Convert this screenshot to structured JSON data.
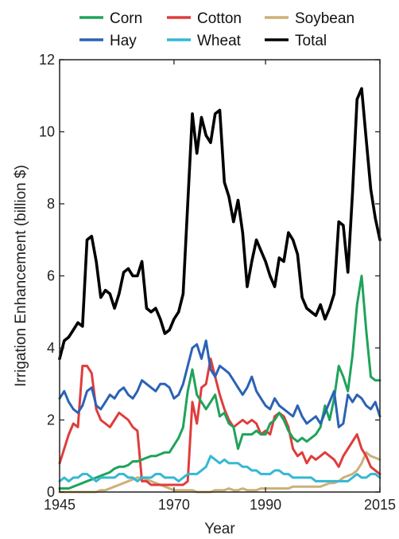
{
  "chart_data": {
    "type": "line",
    "title": "",
    "xlabel": "Year",
    "ylabel": "Irrigation Enhancement (billion $)",
    "xlim": [
      1945,
      2015
    ],
    "ylim": [
      0,
      12
    ],
    "xticks": [
      1945,
      1970,
      1990,
      2015
    ],
    "yticks": [
      0,
      2,
      4,
      6,
      8,
      10,
      12
    ],
    "legend_position": "top",
    "grid": false,
    "x": [
      1945,
      1946,
      1947,
      1948,
      1949,
      1950,
      1951,
      1952,
      1953,
      1954,
      1955,
      1956,
      1957,
      1958,
      1959,
      1960,
      1961,
      1962,
      1963,
      1964,
      1965,
      1966,
      1967,
      1968,
      1969,
      1970,
      1971,
      1972,
      1973,
      1974,
      1975,
      1976,
      1977,
      1978,
      1979,
      1980,
      1981,
      1982,
      1983,
      1984,
      1985,
      1986,
      1987,
      1988,
      1989,
      1990,
      1991,
      1992,
      1993,
      1994,
      1995,
      1996,
      1997,
      1998,
      1999,
      2000,
      2001,
      2002,
      2003,
      2004,
      2005,
      2006,
      2007,
      2008,
      2009,
      2010,
      2011,
      2012,
      2013,
      2014,
      2015
    ],
    "series": [
      {
        "name": "Corn",
        "color": "#1fa35a",
        "values": [
          0.1,
          0.1,
          0.1,
          0.15,
          0.2,
          0.25,
          0.3,
          0.35,
          0.4,
          0.45,
          0.5,
          0.55,
          0.65,
          0.7,
          0.7,
          0.75,
          0.85,
          0.85,
          0.9,
          0.95,
          1.0,
          1.0,
          1.05,
          1.1,
          1.1,
          1.3,
          1.5,
          1.8,
          2.8,
          3.4,
          2.7,
          2.5,
          2.3,
          2.5,
          2.7,
          2.1,
          2.2,
          1.9,
          1.8,
          1.2,
          1.6,
          1.6,
          1.6,
          1.7,
          1.6,
          1.6,
          1.9,
          2.0,
          2.2,
          2.0,
          1.7,
          1.5,
          1.4,
          1.5,
          1.4,
          1.5,
          1.6,
          1.8,
          2.4,
          2.0,
          2.6,
          3.5,
          3.2,
          2.8,
          3.8,
          5.2,
          6.0,
          4.5,
          3.2,
          3.1,
          3.1
        ]
      },
      {
        "name": "Cotton",
        "color": "#e03c3c",
        "values": [
          0.8,
          1.2,
          1.6,
          1.9,
          1.8,
          3.5,
          3.5,
          3.3,
          2.3,
          2.0,
          1.9,
          1.8,
          2.0,
          2.2,
          2.1,
          2.0,
          1.8,
          1.7,
          0.3,
          0.3,
          0.2,
          0.2,
          0.2,
          0.2,
          0.2,
          0.2,
          0.2,
          0.2,
          0.3,
          2.5,
          1.9,
          2.9,
          3.0,
          3.7,
          3.2,
          2.7,
          2.3,
          2.0,
          1.8,
          1.9,
          2.0,
          1.9,
          2.0,
          1.9,
          1.6,
          1.7,
          1.6,
          2.1,
          2.2,
          2.1,
          1.8,
          1.2,
          1.0,
          1.1,
          0.8,
          1.0,
          0.9,
          1.0,
          1.1,
          1.0,
          0.9,
          0.7,
          1.0,
          1.2,
          1.4,
          1.6,
          1.2,
          1.0,
          0.7,
          0.6,
          0.5
        ]
      },
      {
        "name": "Soybean",
        "color": "#cdb078",
        "values": [
          0.0,
          0.0,
          0.0,
          0.0,
          0.0,
          0.0,
          0.0,
          0.0,
          0.0,
          0.05,
          0.05,
          0.1,
          0.15,
          0.2,
          0.25,
          0.3,
          0.35,
          0.4,
          0.4,
          0.35,
          0.3,
          0.25,
          0.2,
          0.15,
          0.1,
          0.05,
          0.05,
          0.05,
          0.05,
          0.05,
          0.0,
          0.0,
          0.0,
          0.0,
          0.05,
          0.05,
          0.05,
          0.1,
          0.05,
          0.05,
          0.1,
          0.05,
          0.05,
          0.05,
          0.1,
          0.1,
          0.1,
          0.1,
          0.1,
          0.1,
          0.1,
          0.15,
          0.15,
          0.15,
          0.15,
          0.15,
          0.15,
          0.15,
          0.2,
          0.25,
          0.25,
          0.3,
          0.4,
          0.45,
          0.5,
          0.6,
          0.8,
          1.1,
          1.0,
          0.95,
          0.9
        ]
      },
      {
        "name": "Hay",
        "color": "#2b62b5",
        "values": [
          2.6,
          2.8,
          2.5,
          2.3,
          2.2,
          2.4,
          2.8,
          2.9,
          2.4,
          2.3,
          2.5,
          2.7,
          2.6,
          2.8,
          2.9,
          2.7,
          2.6,
          2.8,
          3.1,
          3.0,
          2.9,
          2.8,
          3.0,
          3.0,
          2.9,
          2.6,
          2.7,
          3.0,
          3.5,
          4.0,
          4.1,
          3.7,
          4.2,
          3.4,
          3.2,
          3.5,
          3.4,
          3.3,
          3.1,
          2.9,
          2.7,
          2.9,
          3.2,
          2.8,
          2.6,
          2.4,
          2.3,
          2.6,
          2.4,
          2.3,
          2.2,
          2.1,
          2.4,
          2.1,
          1.9,
          2.0,
          2.1,
          1.9,
          2.2,
          2.5,
          2.8,
          1.8,
          1.9,
          2.7,
          2.5,
          2.7,
          2.6,
          2.4,
          2.3,
          2.5,
          2.1
        ]
      },
      {
        "name": "Wheat",
        "color": "#35b8d4",
        "values": [
          0.3,
          0.4,
          0.3,
          0.4,
          0.4,
          0.5,
          0.5,
          0.4,
          0.3,
          0.4,
          0.4,
          0.4,
          0.4,
          0.5,
          0.5,
          0.4,
          0.4,
          0.3,
          0.4,
          0.4,
          0.4,
          0.5,
          0.5,
          0.4,
          0.4,
          0.4,
          0.3,
          0.4,
          0.5,
          0.5,
          0.5,
          0.6,
          0.7,
          1.0,
          0.9,
          0.8,
          0.9,
          0.8,
          0.8,
          0.8,
          0.7,
          0.7,
          0.6,
          0.6,
          0.5,
          0.5,
          0.5,
          0.6,
          0.6,
          0.5,
          0.5,
          0.4,
          0.4,
          0.4,
          0.4,
          0.4,
          0.3,
          0.3,
          0.3,
          0.3,
          0.3,
          0.3,
          0.3,
          0.3,
          0.4,
          0.5,
          0.4,
          0.4,
          0.5,
          0.5,
          0.4
        ]
      },
      {
        "name": "Total",
        "color": "#000000",
        "values": [
          3.7,
          4.2,
          4.3,
          4.5,
          4.7,
          4.6,
          7.0,
          7.1,
          6.4,
          5.4,
          5.6,
          5.5,
          5.1,
          5.5,
          6.1,
          6.2,
          6.0,
          6.0,
          6.4,
          5.1,
          5.0,
          5.1,
          4.8,
          4.4,
          4.5,
          4.8,
          5.0,
          5.5,
          8.0,
          10.5,
          9.4,
          10.4,
          9.9,
          9.7,
          10.5,
          10.6,
          8.6,
          8.2,
          7.5,
          8.1,
          7.2,
          5.7,
          6.4,
          7.0,
          6.7,
          6.4,
          6.0,
          5.7,
          6.5,
          6.4,
          7.2,
          7.0,
          6.6,
          5.4,
          5.1,
          5.0,
          4.9,
          5.2,
          4.8,
          5.1,
          5.5,
          7.5,
          7.4,
          6.1,
          8.3,
          10.9,
          11.2,
          9.8,
          8.4,
          7.6,
          7.0
        ]
      }
    ]
  }
}
